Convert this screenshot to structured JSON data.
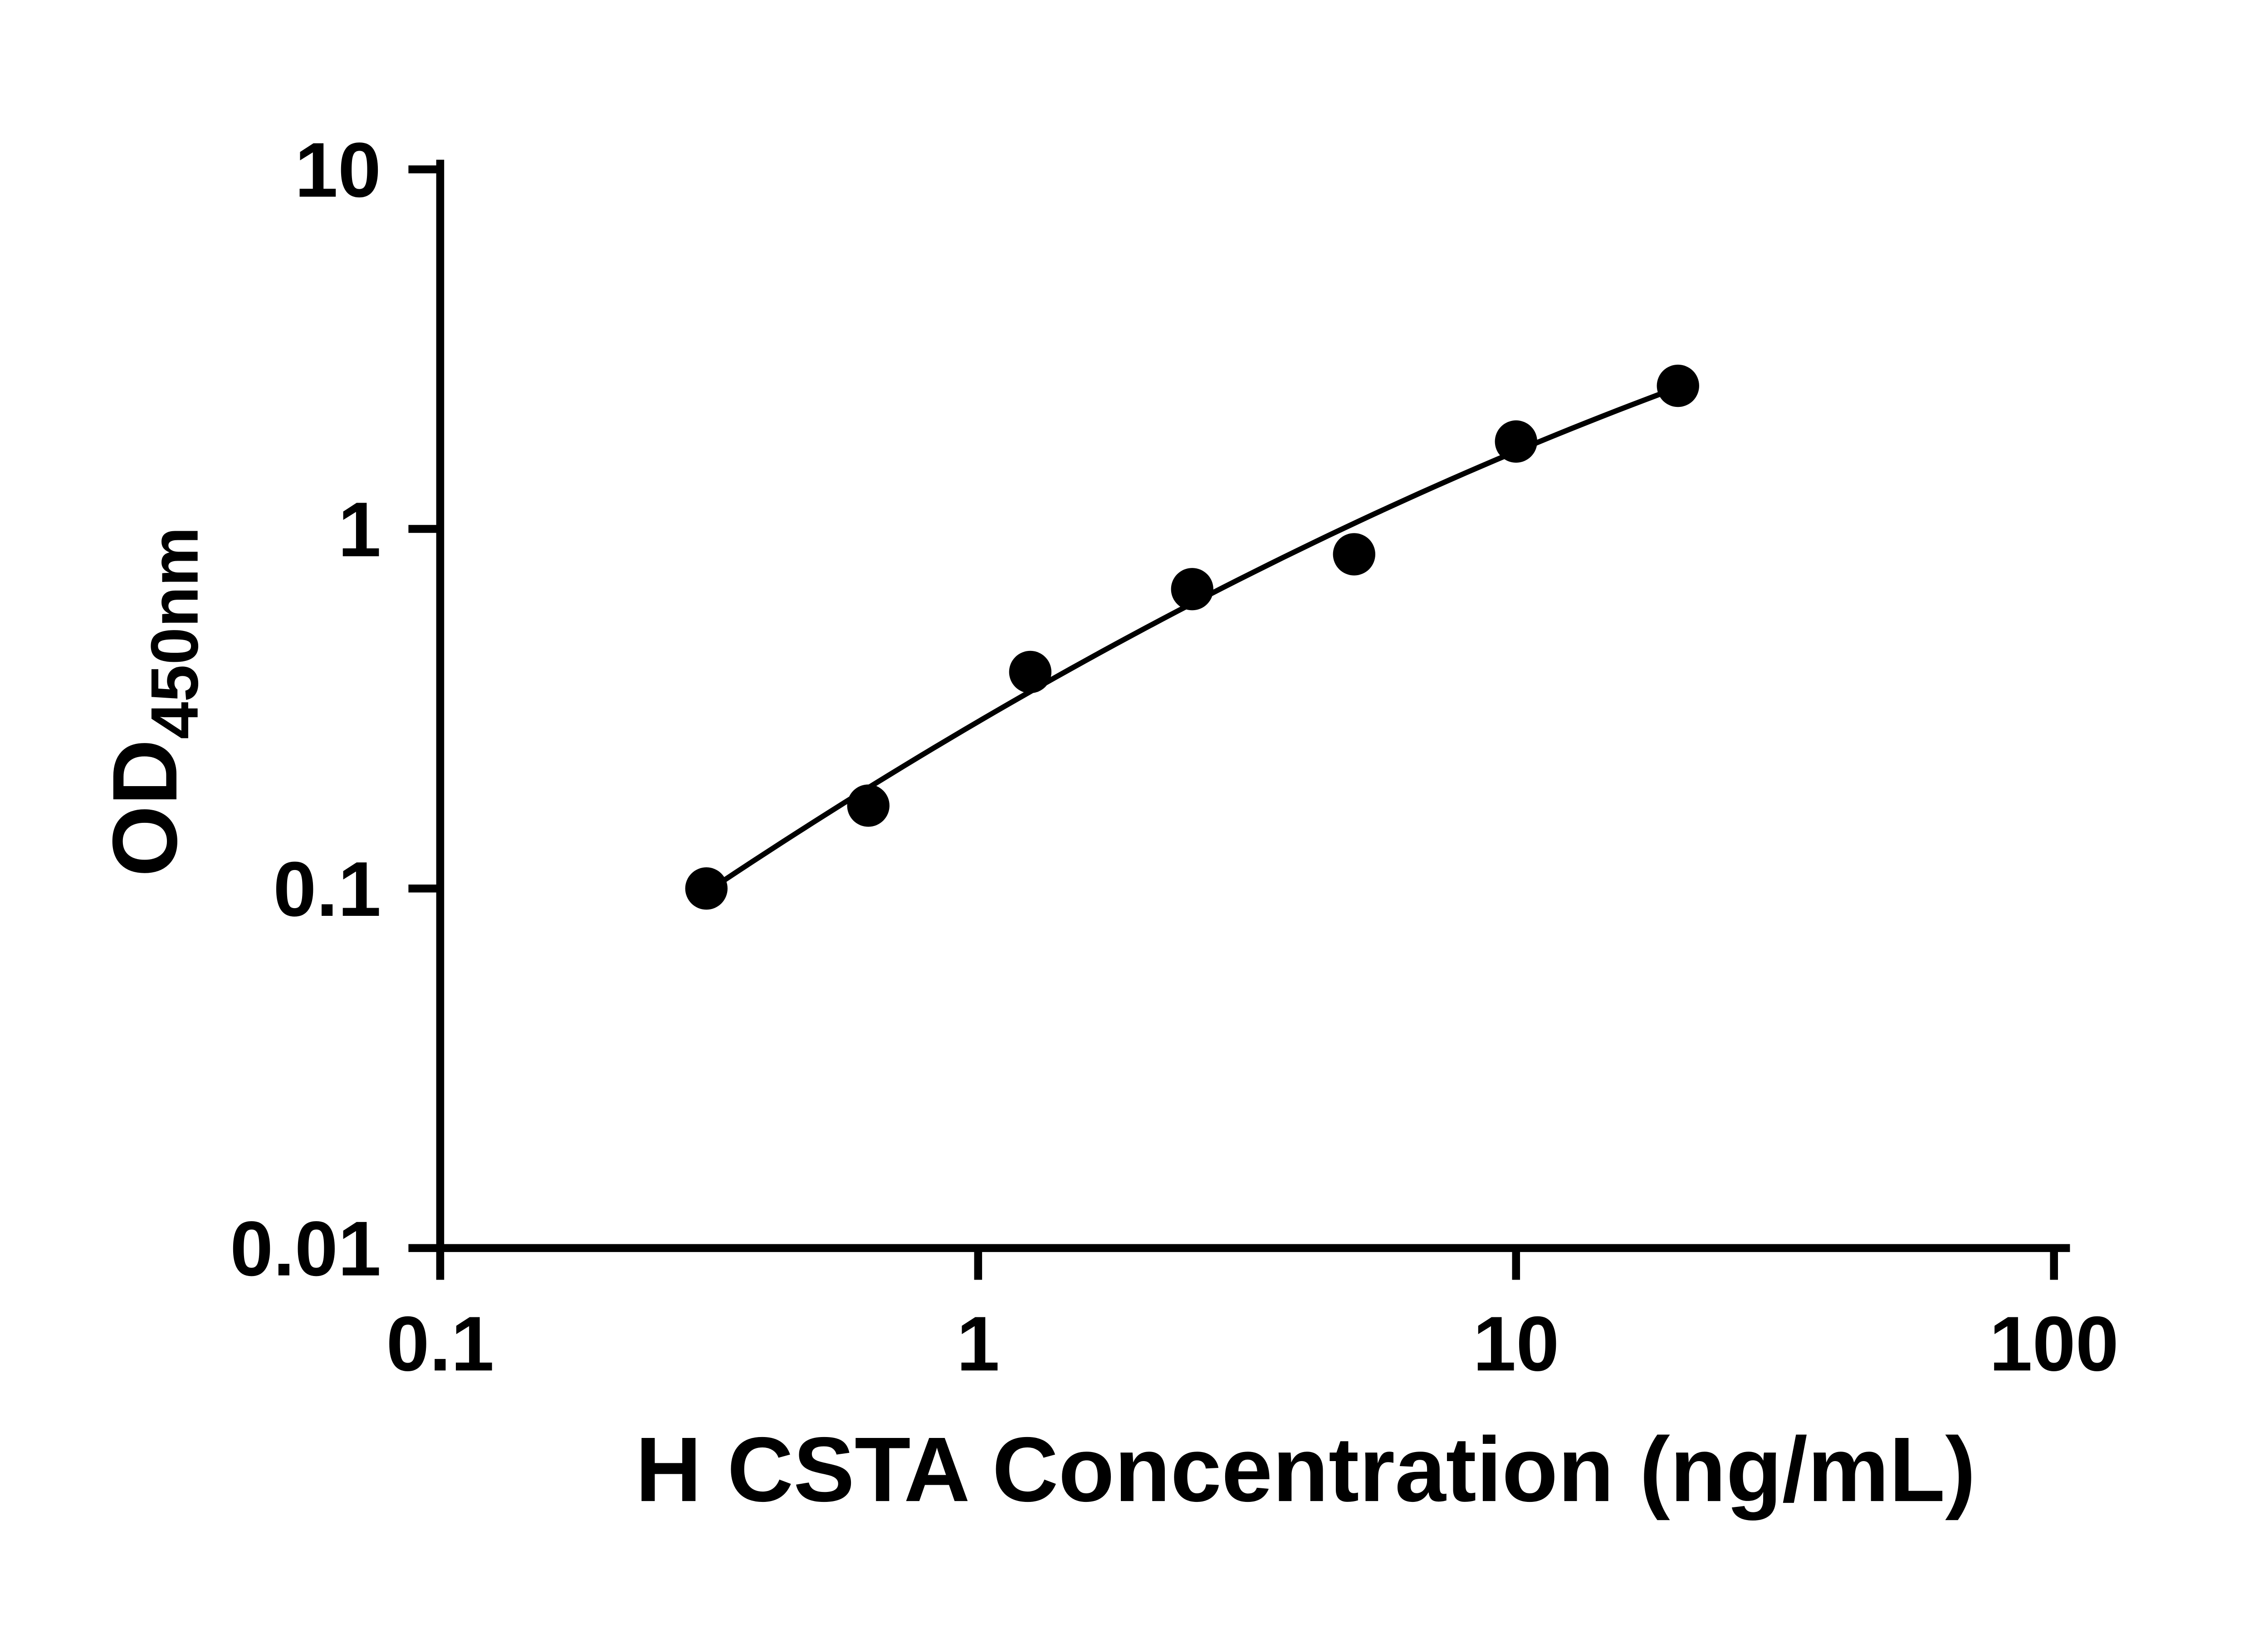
{
  "chart_data": {
    "type": "scatter",
    "title": "",
    "xlabel": "H CSTA Concentration (ng/mL)",
    "ylabel": "OD450nm",
    "ylabel_main": "OD",
    "ylabel_sub": "450nm",
    "x_scale": "log",
    "y_scale": "log",
    "xlim": [
      0.1,
      100
    ],
    "ylim": [
      0.01,
      10
    ],
    "x_ticks": [
      0.1,
      1,
      10,
      100
    ],
    "y_ticks": [
      0.01,
      0.1,
      1,
      10
    ],
    "grid": false,
    "legend": false,
    "marker_color": "#000000",
    "line_color": "#000000",
    "points": [
      {
        "x": 0.3125,
        "y": 0.1
      },
      {
        "x": 0.625,
        "y": 0.17
      },
      {
        "x": 1.25,
        "y": 0.4
      },
      {
        "x": 2.5,
        "y": 0.68
      },
      {
        "x": 5,
        "y": 0.85
      },
      {
        "x": 10,
        "y": 1.75
      },
      {
        "x": 20,
        "y": 2.5
      }
    ],
    "fit_curve": {
      "model": "quadratic-in-loglog",
      "coefficients": {
        "a": -0.5361,
        "b": 0.8756,
        "c": -0.1238
      },
      "x_start": 0.3125,
      "x_end": 20
    }
  }
}
